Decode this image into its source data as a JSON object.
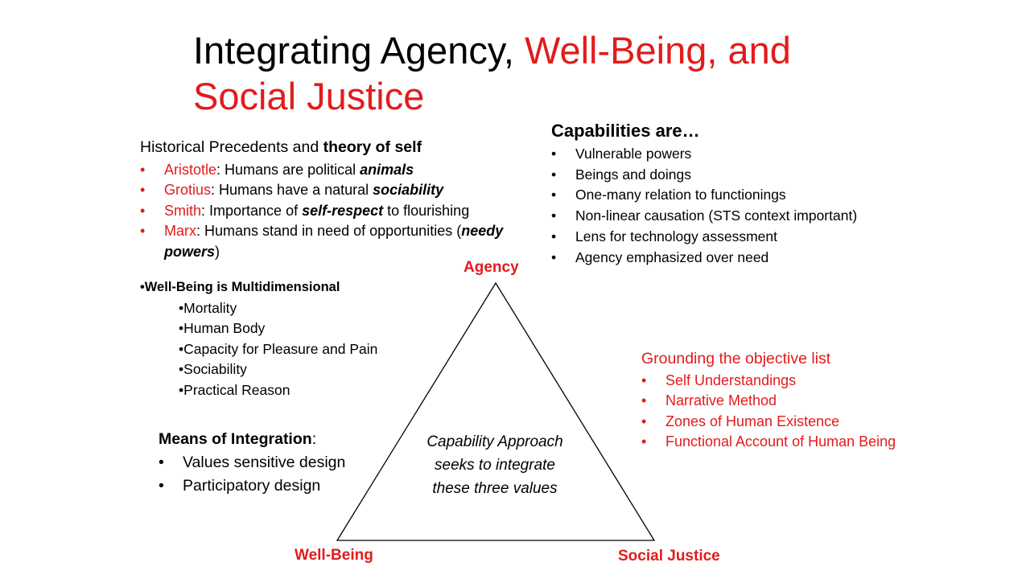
{
  "title": {
    "black": "Integrating Agency, ",
    "red_line1": "Well-Being, and",
    "red_line2": "Social Justice"
  },
  "historical": {
    "heading_plain": "Historical Precedents and ",
    "heading_bold": "theory of self",
    "items": [
      {
        "name": "Aristotle",
        "text": ": Humans are political ",
        "emph": "animals",
        "after": ""
      },
      {
        "name": "Grotius",
        "text": ": Humans have a natural ",
        "emph": "sociability",
        "after": ""
      },
      {
        "name": "Smith",
        "text": ": Importance of ",
        "emph": "self-respect",
        "after": " to flourishing"
      },
      {
        "name": "Marx",
        "text": ": Humans stand in need of opportunities (",
        "emph": "needy powers",
        "after": ")"
      }
    ]
  },
  "capabilities": {
    "heading": "Capabilities are…",
    "items": [
      "Vulnerable powers",
      "Beings and doings",
      "One-many relation to functionings",
      "Non-linear causation (STS context important)",
      "Lens for technology assessment",
      "Agency emphasized over need"
    ]
  },
  "wellbeing": {
    "heading": "Well-Being is Multidimensional",
    "items": [
      "Mortality",
      "Human Body",
      "Capacity for Pleasure and Pain",
      "Sociability",
      "Practical Reason"
    ]
  },
  "means": {
    "heading": "Means of Integration",
    "colon": ":",
    "items": [
      "Values sensitive design",
      "Participatory design"
    ]
  },
  "grounding": {
    "heading": "Grounding the objective list",
    "items": [
      "Self Understandings",
      "Narrative Method",
      "Zones of Human Existence",
      "Functional Account of Human Being"
    ]
  },
  "triangle": {
    "top_label": "Agency",
    "left_label": "Well-Being",
    "right_label": "Social Justice",
    "center_text": "Capability Approach seeks to integrate these three values"
  },
  "colors": {
    "accent": "#e31b1b",
    "text": "#000000"
  }
}
